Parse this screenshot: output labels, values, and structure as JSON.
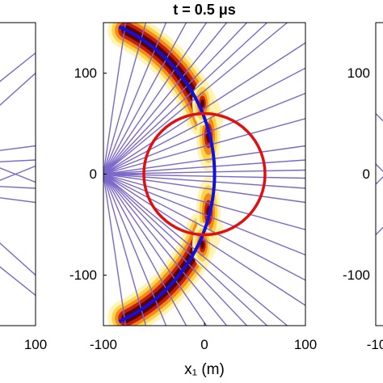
{
  "chart_data": [
    {
      "type": "line",
      "panel": "left (clipped)",
      "title": "",
      "xlabel": "",
      "ylabel": "",
      "xlim": [
        -100,
        100
      ],
      "ylim": [
        -150,
        150
      ],
      "x_ticks": [
        "100"
      ],
      "y_ticks": [],
      "series": [
        {
          "color": "#7b68c8",
          "rays": [
            {
              "x": [
                -100,
                100
              ],
              "y": [
                -40,
                120
              ]
            },
            {
              "x": [
                -100,
                100
              ],
              "y": [
                40,
                -120
              ]
            },
            {
              "x": [
                -100,
                100
              ],
              "y": [
                80,
                -100
              ]
            },
            {
              "x": [
                -100,
                100
              ],
              "y": [
                -80,
                100
              ]
            },
            {
              "x": [
                60,
                100
              ],
              "y": [
                -8,
                8
              ]
            },
            {
              "x": [
                60,
                100
              ],
              "y": [
                8,
                -8
              ]
            },
            {
              "x": [
                -100,
                100
              ],
              "y": [
                2,
                28
              ]
            },
            {
              "x": [
                -100,
                100
              ],
              "y": [
                -2,
                -28
              ]
            },
            {
              "x": [
                -100,
                100
              ],
              "y": [
                4,
                14
              ]
            },
            {
              "x": [
                -100,
                100
              ],
              "y": [
                -4,
                -14
              ]
            }
          ]
        }
      ]
    },
    {
      "type": "heatmap",
      "panel": "center",
      "title": "t = 0.5 μs",
      "xlabel": "x₁ (m)",
      "ylabel": "",
      "xlim": [
        -100,
        100
      ],
      "ylim": [
        -150,
        150
      ],
      "x_ticks": [
        "-100",
        "0",
        "100"
      ],
      "y_ticks": [
        "100",
        "0",
        "-100"
      ],
      "wavefront_arc": {
        "center": [
          -150,
          0
        ],
        "radius": 160,
        "color": "#1010e0"
      },
      "inclusion_circle": {
        "center": [
          0,
          0
        ],
        "radius": 60,
        "color": "#e01010"
      },
      "rays_color": "#7b68c8",
      "ray_source": [
        -100,
        0
      ],
      "ray_endpoints": [
        [
          -78,
          150
        ],
        [
          -58,
          150
        ],
        [
          -38,
          150
        ],
        [
          -18,
          150
        ],
        [
          2,
          150
        ],
        [
          22,
          150
        ],
        [
          42,
          150
        ],
        [
          62,
          150
        ],
        [
          82,
          150
        ],
        [
          100,
          130
        ],
        [
          100,
          105
        ],
        [
          100,
          80
        ],
        [
          100,
          55
        ],
        [
          100,
          28
        ],
        [
          100,
          14
        ],
        [
          100,
          4
        ],
        [
          100,
          -4
        ],
        [
          100,
          -14
        ],
        [
          100,
          -28
        ],
        [
          100,
          -55
        ],
        [
          100,
          -80
        ],
        [
          100,
          -105
        ],
        [
          100,
          -130
        ],
        [
          82,
          -150
        ],
        [
          62,
          -150
        ],
        [
          42,
          -150
        ],
        [
          22,
          -150
        ],
        [
          2,
          -150
        ],
        [
          -18,
          -150
        ],
        [
          -38,
          -150
        ],
        [
          -58,
          -150
        ],
        [
          -78,
          -150
        ]
      ]
    },
    {
      "type": "line",
      "panel": "right (clipped)",
      "title": "",
      "xlabel": "",
      "ylabel": "",
      "xlim": [
        -100,
        100
      ],
      "ylim": [
        -150,
        150
      ],
      "x_ticks": [
        "-10"
      ],
      "y_ticks": [
        "100",
        "0",
        "-100"
      ],
      "series": [
        {
          "color": "#7b68c8",
          "rays": [
            {
              "x": [
                -100,
                -80
              ],
              "y": [
                -10,
                10
              ]
            },
            {
              "x": [
                -100,
                -80
              ],
              "y": [
                10,
                -10
              ]
            },
            {
              "x": [
                -100,
                -70
              ],
              "y": [
                -60,
                -30
              ]
            },
            {
              "x": [
                -100,
                -70
              ],
              "y": [
                60,
                30
              ]
            }
          ]
        }
      ]
    }
  ]
}
